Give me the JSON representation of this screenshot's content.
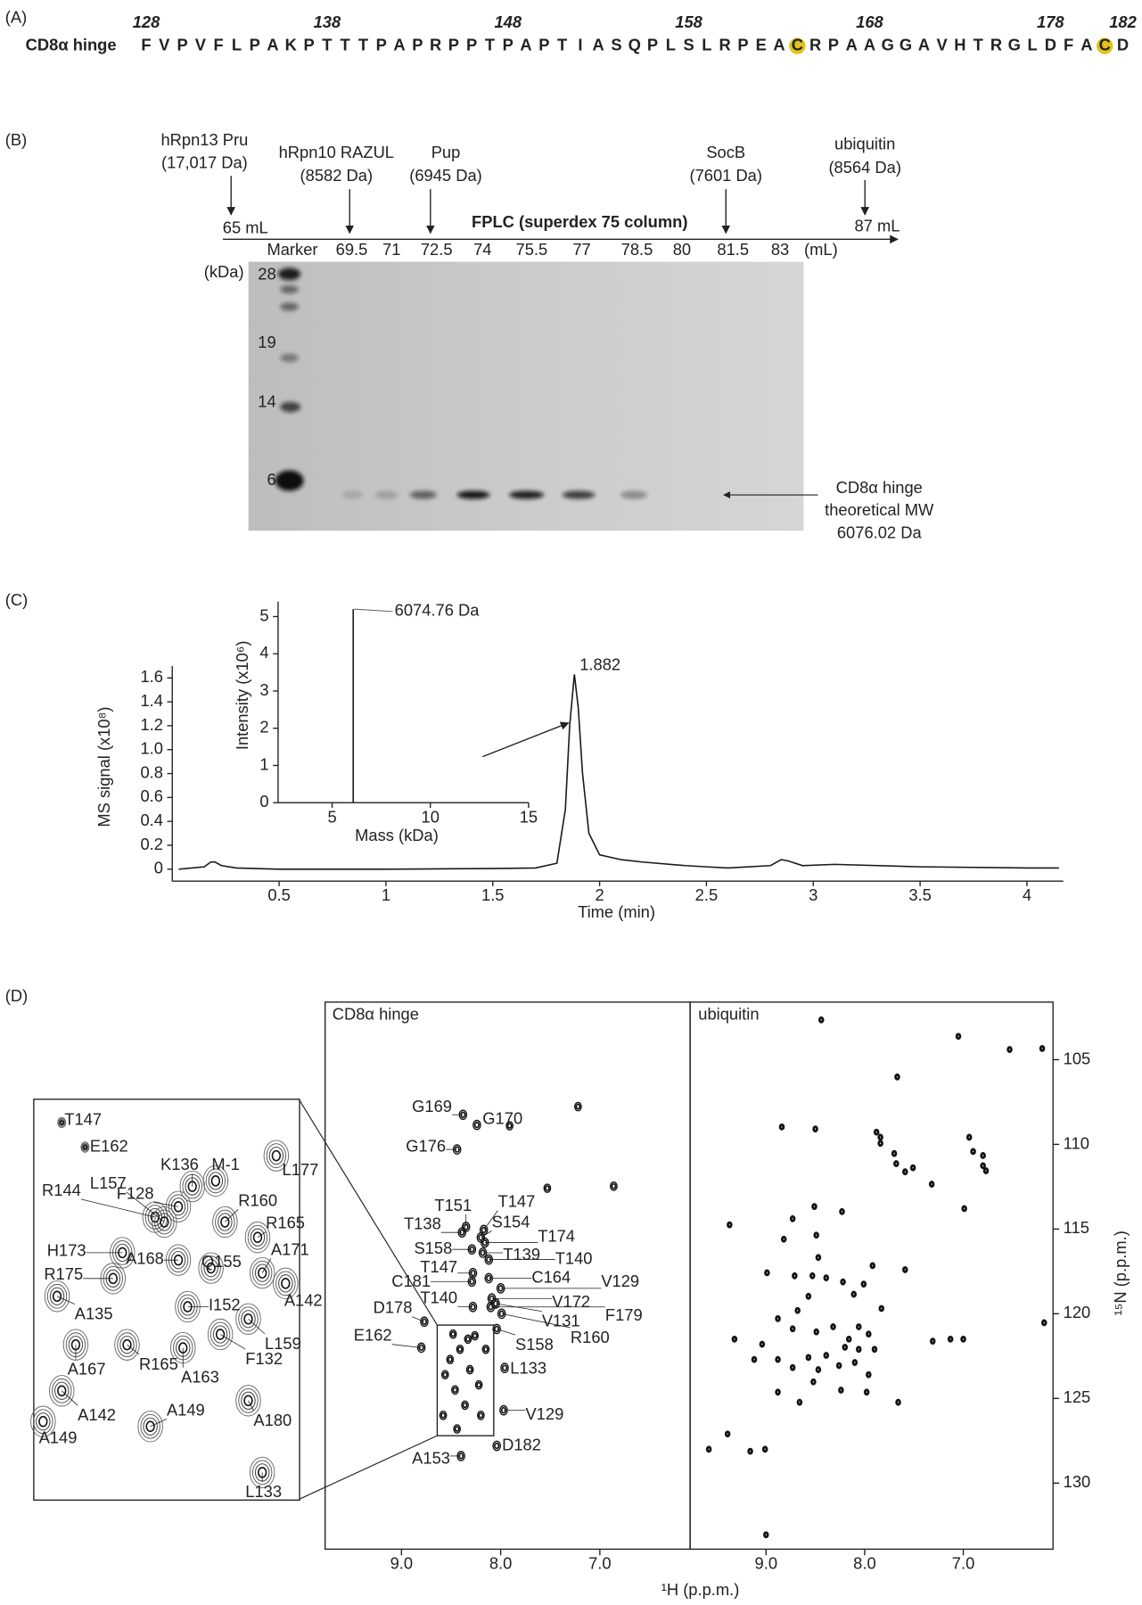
{
  "panel_a": {
    "label": "(A)",
    "name": "CD8α hinge",
    "residues": [
      "F",
      "V",
      "P",
      "V",
      "F",
      "L",
      "P",
      "A",
      "K",
      "P",
      "T",
      "T",
      "T",
      "P",
      "A",
      "P",
      "R",
      "P",
      "P",
      "T",
      "P",
      "A",
      "P",
      "T",
      "I",
      "A",
      "S",
      "Q",
      "P",
      "L",
      "S",
      "L",
      "R",
      "P",
      "E",
      "A",
      "C",
      "R",
      "P",
      "A",
      "A",
      "G",
      "G",
      "A",
      "V",
      "H",
      "T",
      "R",
      "G",
      "L",
      "D",
      "F",
      "A",
      "C",
      "D"
    ],
    "positions": [
      128,
      138,
      148,
      158,
      168,
      178,
      182
    ],
    "colored": {
      "P": "#e3262b"
    },
    "highlighted": {
      "C": "#e2c21c"
    }
  },
  "panel_b": {
    "label": "(B)",
    "annotations": [
      [
        "hRpn13 Pru",
        "(17,017 Da)"
      ],
      [
        "hRpn10 RAZUL",
        "(8582 Da)"
      ],
      [
        "Pup",
        "(6945 Da)"
      ],
      [
        "SocB",
        "(7601 Da)"
      ],
      [
        "ubiquitin",
        "(8564 Da)"
      ]
    ],
    "start_label": "65 mL",
    "end_label": "87 mL",
    "axis_title": "FPLC (superdex 75 column)",
    "lanes": [
      "Marker",
      "69.5",
      "71",
      "72.5",
      "74",
      "75.5",
      "77",
      "78.5",
      "80",
      "81.5",
      "83",
      "(mL)"
    ],
    "mw_unit": "(kDa)",
    "mw_markers": [
      "28",
      "19",
      "14",
      "6"
    ],
    "band_label": [
      "CD8α hinge",
      "theoretical MW",
      "6076.02 Da"
    ]
  },
  "panel_c": {
    "label": "(C)"
  },
  "panel_d": {
    "label": "(D)",
    "xlabel": "¹H (p.p.m.)",
    "ylabel": "¹⁵N (p.p.m.)"
  },
  "chart_data": [
    {
      "type": "line",
      "xlabel": "Time (min)",
      "ylabel": "MS signal (x10⁸)",
      "annotation": "1.882",
      "color": "#1a1a1a",
      "x": [
        0.03,
        0.15,
        0.18,
        0.2,
        0.23,
        0.3,
        0.5,
        1.0,
        1.5,
        1.7,
        1.8,
        1.84,
        1.86,
        1.882,
        1.9,
        1.92,
        1.95,
        2.0,
        2.1,
        2.2,
        2.4,
        2.5,
        2.6,
        2.8,
        2.85,
        2.88,
        2.95,
        3.1,
        3.5,
        4.0,
        4.15
      ],
      "values": [
        0,
        0.02,
        0.06,
        0.06,
        0.03,
        0.01,
        0,
        0,
        0.005,
        0.01,
        0.05,
        0.5,
        1.2,
        1.63,
        1.35,
        0.8,
        0.3,
        0.12,
        0.08,
        0.06,
        0.03,
        0.02,
        0.01,
        0.03,
        0.08,
        0.07,
        0.03,
        0.04,
        0.02,
        0.01,
        0.01
      ],
      "xlim": [
        0,
        4.17
      ],
      "ylim": [
        -0.1,
        1.7
      ],
      "xticks": [
        0.5,
        1,
        1.5,
        2,
        2.5,
        3,
        3.5,
        4
      ],
      "yticks": [
        0,
        0.2,
        0.4,
        0.6,
        0.8,
        {
          "value": 1,
          "label": "1.0"
        },
        1.2,
        1.4,
        1.6
      ]
    },
    {
      "type": "stick",
      "xlabel": "Mass (kDa)",
      "ylabel": "Intensity (x10⁶)",
      "annotation": "6074.76 Da",
      "color": "#1a1a1a",
      "x": [
        6.07476
      ],
      "values": [
        5.2
      ],
      "xlim": [
        2.25,
        15
      ],
      "ylim": [
        0,
        5.4
      ],
      "xticks": [
        5,
        10,
        15
      ],
      "yticks": [
        0,
        1,
        2,
        3,
        4,
        5
      ]
    },
    {
      "type": "scatter",
      "title": "CD8α hinge",
      "xlim": [
        9.77,
        6.09
      ],
      "ylim": [
        101.6,
        133.9
      ],
      "xticks": [
        {
          "value": 9,
          "label": "9.0"
        },
        {
          "value": 8,
          "label": "8.0"
        },
        {
          "value": 7,
          "label": "7.0"
        }
      ],
      "labels": [
        "G169",
        "G170",
        "G176",
        "T151",
        "T147",
        "T138",
        "S154",
        "T174",
        "S158",
        "T139",
        "T140",
        "C164",
        "V129",
        "T147",
        "C181",
        "T140",
        "V172",
        "D178",
        "F179",
        "V131",
        "E162",
        "R160",
        "S158",
        "L133",
        "V129",
        "D182",
        "A153"
      ],
      "x": [
        8.38,
        8.24,
        8.44,
        8.35,
        8.17,
        8.39,
        8.2,
        8.16,
        8.29,
        8.18,
        8.12,
        8.12,
        8.0,
        8.28,
        8.29,
        8.28,
        8.09,
        8.77,
        8.1,
        8.05,
        8.8,
        7.99,
        8.04,
        7.96,
        7.97,
        8.04,
        8.4
      ],
      "values": [
        108.25,
        108.85,
        110.3,
        114.87,
        115.05,
        115.2,
        115.5,
        115.8,
        116.2,
        116.4,
        116.8,
        117.9,
        118.5,
        117.6,
        118.1,
        119.6,
        119.1,
        120.47,
        119.6,
        119.4,
        122.0,
        120.0,
        120.9,
        123.2,
        125.7,
        127.8,
        128.4
      ],
      "unlabeled_x": [
        7.22,
        7.53,
        6.86,
        7.91,
        8.51,
        8.41,
        8.31,
        8.22,
        8.46,
        8.56,
        8.36,
        8.2,
        8.58,
        8.15,
        8.48,
        8.33,
        8.26,
        8.44
      ],
      "unlabeled_values": [
        107.77,
        112.59,
        112.47,
        108.9,
        122.7,
        122.1,
        123.3,
        124.2,
        124.5,
        123.6,
        125.4,
        126.0,
        126.0,
        122.1,
        121.2,
        121.5,
        121.3,
        126.8
      ]
    },
    {
      "type": "scatter",
      "title": "ubiquitin",
      "xlim": [
        9.77,
        6.09
      ],
      "ylim": [
        101.6,
        133.9
      ],
      "xticks": [
        {
          "value": 9,
          "label": "9.0"
        },
        {
          "value": 8,
          "label": "8.0"
        },
        {
          "value": 7,
          "label": "7.0"
        }
      ],
      "yticks": [
        105,
        110,
        115,
        120,
        125,
        130
      ],
      "x": [
        8.44,
        7.05,
        6.53,
        6.2,
        7.67,
        6.18,
        8.84,
        8.5,
        7.88,
        7.84,
        7.84,
        7.7,
        7.68,
        7.59,
        7.51,
        7.32,
        6.94,
        6.9,
        6.8,
        6.8,
        6.77,
        6.99,
        9.37,
        8.73,
        8.51,
        8.23,
        8.49,
        8.82,
        8.47,
        8.99,
        8.71,
        8.53,
        8.39,
        8.22,
        7.92,
        8.01,
        7.59,
        7.83,
        8.11,
        8.57,
        8.68,
        8.88,
        9.32,
        9.04,
        8.73,
        8.49,
        8.32,
        8.16,
        8.06,
        7.96,
        8.2,
        8.06,
        7.9,
        8.39,
        8.57,
        8.88,
        9.12,
        8.73,
        8.47,
        8.26,
        8.1,
        7.96,
        8.52,
        8.88,
        8.66,
        8.24,
        7.98,
        7.66,
        7.31,
        7.13,
        7.0,
        9.39,
        9.16,
        9.58,
        9.01,
        9.0
      ],
      "values": [
        102.65,
        103.62,
        104.4,
        104.34,
        106.02,
        120.53,
        108.97,
        109.09,
        109.28,
        109.58,
        109.94,
        110.54,
        111.14,
        111.62,
        111.38,
        112.35,
        109.58,
        110.42,
        110.66,
        111.26,
        111.56,
        113.79,
        114.75,
        114.39,
        113.67,
        113.97,
        115.36,
        115.6,
        116.68,
        117.58,
        117.76,
        117.76,
        117.88,
        118.12,
        117.16,
        118.25,
        117.4,
        119.69,
        118.85,
        118.97,
        119.81,
        120.29,
        121.5,
        121.8,
        120.89,
        121.07,
        120.77,
        121.5,
        120.77,
        121.2,
        121.98,
        122.1,
        122.1,
        122.46,
        122.58,
        122.7,
        122.7,
        123.18,
        123.3,
        123.06,
        122.88,
        123.6,
        124.02,
        124.63,
        125.23,
        124.51,
        124.63,
        125.23,
        121.62,
        121.5,
        121.5,
        127.1,
        128.12,
        128.0,
        128.0,
        133.05
      ]
    },
    {
      "type": "scatter",
      "xlim": [
        8.64,
        8.07
      ],
      "ylim": [
        120.67,
        127.2
      ],
      "labels": [
        "T147",
        "E162",
        "L177",
        "K136",
        "M-1",
        "F128",
        "R144",
        "L157",
        "R160",
        "R165",
        "H173",
        "A168",
        "Q155",
        "A171",
        "R175",
        "A142",
        "A135",
        "I152",
        "L159",
        "A167",
        "R165",
        "F132",
        "A163",
        "A149",
        "A142",
        "A180",
        "A149",
        "L133"
      ],
      "label_colors": [
        "#222",
        "#222",
        "#222",
        "#222",
        "#888",
        "#222",
        "#222",
        "#222",
        "#222",
        "#222",
        "#222",
        "#222",
        "#222",
        "#222",
        "#222",
        "#222",
        "#222",
        "#222",
        "#222",
        "#222",
        "#222",
        "#222",
        "#222",
        "#222",
        "#222",
        "#222",
        "#222",
        "#222"
      ],
      "x": [
        8.58,
        8.53,
        8.12,
        8.3,
        8.25,
        8.33,
        8.38,
        8.36,
        8.23,
        8.16,
        8.45,
        8.33,
        8.26,
        8.15,
        8.47,
        8.1,
        8.59,
        8.31,
        8.18,
        8.55,
        8.44,
        8.24,
        8.32,
        8.39,
        8.58,
        8.18,
        8.62,
        8.15
      ],
      "values": [
        121.05,
        121.45,
        121.59,
        122.09,
        122.0,
        122.42,
        122.59,
        122.67,
        122.67,
        122.92,
        123.17,
        123.29,
        123.42,
        123.5,
        123.59,
        123.67,
        123.88,
        124.05,
        124.25,
        124.67,
        124.67,
        124.5,
        124.72,
        126.0,
        125.42,
        125.58,
        125.92,
        126.75
      ]
    }
  ]
}
